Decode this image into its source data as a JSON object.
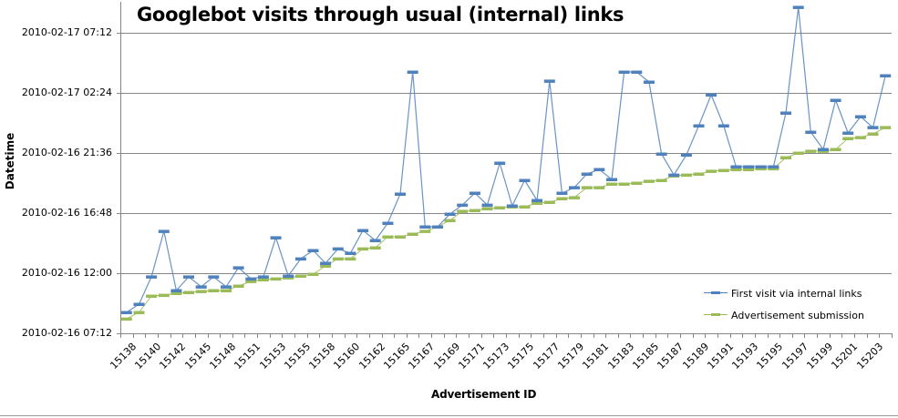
{
  "chart_data": {
    "type": "line",
    "title": "Googlebot visits through usual (internal) links",
    "xlabel": "Advertisement ID",
    "ylabel": "Datetime",
    "y_unit_note": "values are hours since 2010-02-16 00:00",
    "ylim_hours": [
      7.2,
      33.25
    ],
    "y_ticks": [
      {
        "label": "2010-02-16 07:12",
        "hours": 7.2
      },
      {
        "label": "2010-02-16 12:00",
        "hours": 12.0
      },
      {
        "label": "2010-02-16 16:48",
        "hours": 16.8
      },
      {
        "label": "2010-02-16 21:36",
        "hours": 21.6
      },
      {
        "label": "2010-02-17 02:24",
        "hours": 26.4
      },
      {
        "label": "2010-02-17 07:12",
        "hours": 31.2
      }
    ],
    "x_tick_labels": [
      "15138",
      "15140",
      "15142",
      "15145",
      "15148",
      "15151",
      "15153",
      "15155",
      "15158",
      "15160",
      "15162",
      "15165",
      "15167",
      "15169",
      "15171",
      "15173",
      "15175",
      "15177",
      "15179",
      "15181",
      "15183",
      "15185",
      "15187",
      "15189",
      "15191",
      "15193",
      "15195",
      "15197",
      "15199",
      "15201",
      "15203"
    ],
    "x_tick_label_every": 2,
    "num_categories": 62,
    "grid": {
      "horizontal": true,
      "vertical": false
    },
    "legend_position": "right-bottom-inside",
    "series": [
      {
        "name": "First visit via internal links",
        "color": "#4f81bd",
        "values": [
          8.87,
          9.53,
          11.72,
          15.35,
          10.62,
          11.72,
          10.92,
          11.72,
          10.92,
          12.44,
          11.56,
          11.72,
          14.84,
          11.78,
          13.16,
          13.82,
          12.8,
          13.96,
          13.6,
          15.42,
          14.62,
          16.0,
          18.33,
          28.07,
          15.71,
          15.71,
          16.73,
          17.45,
          18.4,
          17.45,
          20.8,
          17.38,
          19.42,
          17.82,
          27.35,
          18.4,
          18.84,
          19.93,
          20.29,
          19.49,
          28.07,
          28.07,
          27.27,
          21.53,
          19.85,
          21.45,
          23.78,
          26.25,
          23.78,
          20.51,
          20.51,
          20.51,
          20.51,
          24.8,
          33.24,
          23.27,
          21.89,
          25.82,
          23.2,
          24.51,
          23.64,
          27.78
        ]
      },
      {
        "name": "Advertisement submission",
        "color": "#9bbb59",
        "values": [
          8.36,
          8.87,
          10.18,
          10.25,
          10.4,
          10.47,
          10.55,
          10.62,
          10.62,
          10.98,
          11.35,
          11.49,
          11.56,
          11.64,
          11.78,
          11.93,
          12.58,
          13.16,
          13.16,
          13.96,
          14.04,
          14.91,
          14.91,
          15.13,
          15.35,
          15.71,
          16.22,
          16.95,
          17.02,
          17.16,
          17.24,
          17.31,
          17.31,
          17.6,
          17.67,
          17.96,
          18.04,
          18.84,
          18.84,
          19.13,
          19.13,
          19.2,
          19.35,
          19.42,
          19.78,
          19.85,
          19.93,
          20.15,
          20.22,
          20.29,
          20.29,
          20.36,
          20.36,
          21.24,
          21.6,
          21.75,
          21.75,
          21.89,
          22.76,
          22.84,
          23.13,
          23.64
        ]
      }
    ]
  },
  "legend": {
    "items": [
      {
        "label": "First visit via internal links",
        "color": "#4f81bd"
      },
      {
        "label": "Advertisement submission",
        "color": "#9bbb59"
      }
    ]
  },
  "colors": {
    "gridline": "#868686",
    "axis": "#868686"
  }
}
